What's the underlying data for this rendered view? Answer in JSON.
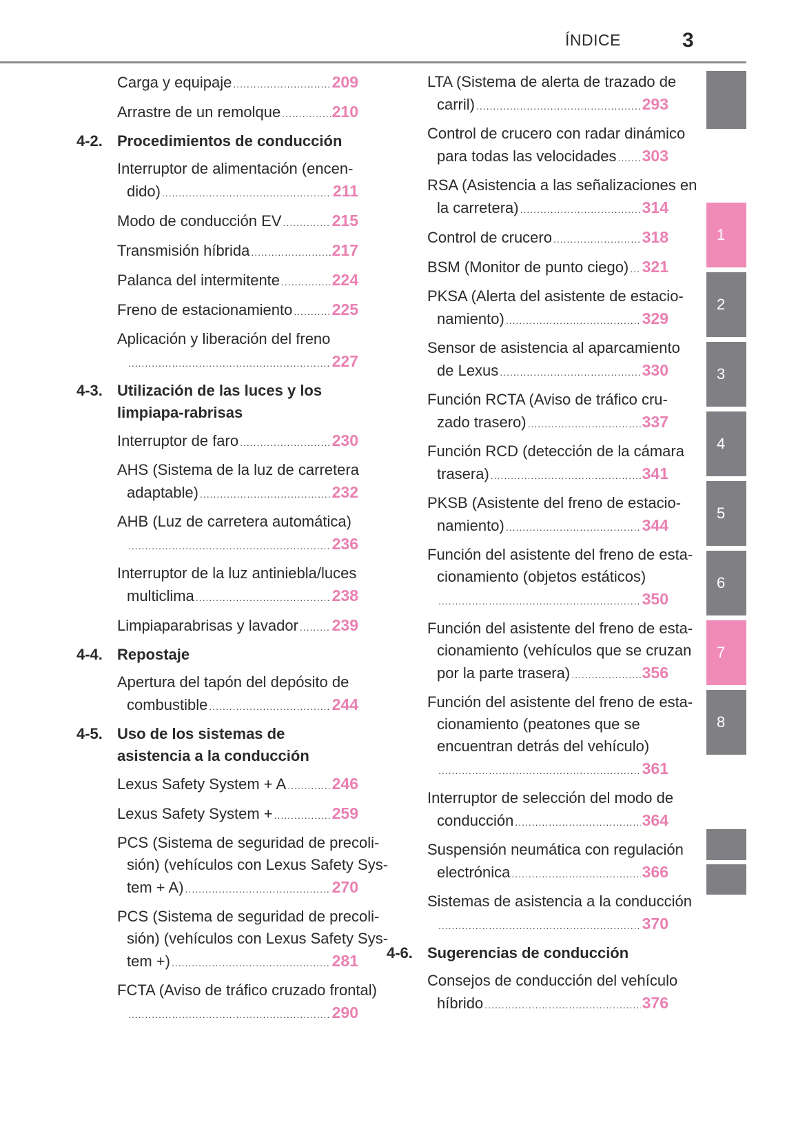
{
  "header": {
    "title": "ÍNDICE",
    "page_number": "3"
  },
  "colors": {
    "accent_pink": "#f08ab8",
    "page_number_pink": "#ea80b2",
    "tab_gray": "#808084"
  },
  "left_column": [
    {
      "type": "entry",
      "lines": [
        "Carga y equipaje"
      ],
      "page": "209"
    },
    {
      "type": "entry",
      "lines": [
        "Arrastre de un remolque"
      ],
      "page": "210"
    },
    {
      "type": "section",
      "number": "4-2.",
      "title": "Procedimientos de conducción"
    },
    {
      "type": "entry",
      "lines": [
        "Interruptor de alimentación (encen-",
        "dido)"
      ],
      "page": "211"
    },
    {
      "type": "entry",
      "lines": [
        "Modo de conducción EV"
      ],
      "page": "215"
    },
    {
      "type": "entry",
      "lines": [
        "Transmisión híbrida"
      ],
      "page": "217"
    },
    {
      "type": "entry",
      "lines": [
        "Palanca del intermitente"
      ],
      "page": "224"
    },
    {
      "type": "entry",
      "lines": [
        "Freno de estacionamiento"
      ],
      "page": "225"
    },
    {
      "type": "entry",
      "lines": [
        "Aplicación y liberación del freno",
        ""
      ],
      "page": "227"
    },
    {
      "type": "section",
      "number": "4-3.",
      "title": "Utilización de las luces y los limpiapa-rabrisas"
    },
    {
      "type": "entry",
      "lines": [
        "Interruptor de faro"
      ],
      "page": "230"
    },
    {
      "type": "entry",
      "lines": [
        "AHS (Sistema de la luz de carretera",
        "adaptable)"
      ],
      "page": "232"
    },
    {
      "type": "entry",
      "lines": [
        "AHB (Luz de carretera automática)",
        ""
      ],
      "page": "236"
    },
    {
      "type": "entry",
      "lines": [
        "Interruptor de la luz antiniebla/luces",
        "multiclima"
      ],
      "page": "238"
    },
    {
      "type": "entry",
      "lines": [
        "Limpiaparabrisas y lavador"
      ],
      "page": "239"
    },
    {
      "type": "section",
      "number": "4-4.",
      "title": "Repostaje"
    },
    {
      "type": "entry",
      "lines": [
        "Apertura del tapón del depósito de",
        "combustible"
      ],
      "page": "244"
    },
    {
      "type": "section",
      "number": "4-5.",
      "title": "Uso de los sistemas de asistencia a la conducción"
    },
    {
      "type": "entry",
      "lines": [
        "Lexus Safety System + A"
      ],
      "page": "246"
    },
    {
      "type": "entry",
      "lines": [
        "Lexus Safety System +"
      ],
      "page": "259"
    },
    {
      "type": "entry",
      "lines": [
        "PCS (Sistema de seguridad de precoli-",
        "sión) (vehículos con Lexus Safety Sys-",
        "tem + A)"
      ],
      "page": "270"
    },
    {
      "type": "entry",
      "lines": [
        "PCS (Sistema de seguridad de precoli-",
        "sión) (vehículos con Lexus Safety Sys-",
        "tem +)"
      ],
      "page": "281"
    },
    {
      "type": "entry",
      "lines": [
        "FCTA (Aviso de tráfico cruzado frontal)",
        ""
      ],
      "page": "290"
    }
  ],
  "right_column": [
    {
      "type": "entry",
      "lines": [
        "LTA (Sistema de alerta de trazado de",
        "carril)"
      ],
      "page": "293"
    },
    {
      "type": "entry",
      "lines": [
        "Control de crucero con radar dinámico",
        "para todas las velocidades"
      ],
      "page": "303"
    },
    {
      "type": "entry",
      "lines": [
        "RSA (Asistencia a las señalizaciones en",
        "la carretera)"
      ],
      "page": "314"
    },
    {
      "type": "entry",
      "lines": [
        "Control de crucero"
      ],
      "page": "318"
    },
    {
      "type": "entry",
      "lines": [
        "BSM (Monitor de punto ciego)"
      ],
      "page": "321"
    },
    {
      "type": "entry",
      "lines": [
        "PKSA (Alerta del asistente de estacio-",
        "namiento)"
      ],
      "page": "329"
    },
    {
      "type": "entry",
      "lines": [
        "Sensor de asistencia al aparcamiento",
        "de Lexus"
      ],
      "page": "330"
    },
    {
      "type": "entry",
      "lines": [
        "Función RCTA (Aviso de tráfico cru-",
        "zado trasero)"
      ],
      "page": "337"
    },
    {
      "type": "entry",
      "lines": [
        "Función RCD (detección de la cámara",
        "trasera)"
      ],
      "page": "341"
    },
    {
      "type": "entry",
      "lines": [
        "PKSB (Asistente del freno de estacio-",
        "namiento)"
      ],
      "page": "344"
    },
    {
      "type": "entry",
      "lines": [
        "Función del asistente del freno de esta-",
        "cionamiento (objetos estáticos)",
        ""
      ],
      "page": "350"
    },
    {
      "type": "entry",
      "lines": [
        "Función del asistente del freno de esta-",
        "cionamiento (vehículos que se cruzan",
        "por la parte trasera)"
      ],
      "page": "356"
    },
    {
      "type": "entry",
      "lines": [
        "Función del asistente del freno de esta-",
        "cionamiento (peatones que se",
        "encuentran detrás del vehículo)",
        ""
      ],
      "page": "361"
    },
    {
      "type": "entry",
      "lines": [
        "Interruptor de selección del modo de",
        "conducción"
      ],
      "page": "364"
    },
    {
      "type": "entry",
      "lines": [
        "Suspensión neumática con regulación",
        "electrónica"
      ],
      "page": "366"
    },
    {
      "type": "entry",
      "lines": [
        "Sistemas de asistencia a la conducción",
        ""
      ],
      "page": "370"
    },
    {
      "type": "section",
      "number": "4-6.",
      "title": "Sugerencias de conducción"
    },
    {
      "type": "entry",
      "lines": [
        "Consejos de conducción del vehículo",
        "híbrido"
      ],
      "page": "376"
    }
  ],
  "side_tabs": [
    {
      "label": "",
      "color": "gray"
    },
    {
      "label": "1",
      "color": "pink"
    },
    {
      "label": "2",
      "color": "gray"
    },
    {
      "label": "3",
      "color": "gray"
    },
    {
      "label": "4",
      "color": "gray"
    },
    {
      "label": "5",
      "color": "gray"
    },
    {
      "label": "6",
      "color": "gray"
    },
    {
      "label": "7",
      "color": "pink"
    },
    {
      "label": "8",
      "color": "gray"
    },
    {
      "label": "",
      "color": "gray"
    },
    {
      "label": "",
      "color": "gray"
    }
  ]
}
